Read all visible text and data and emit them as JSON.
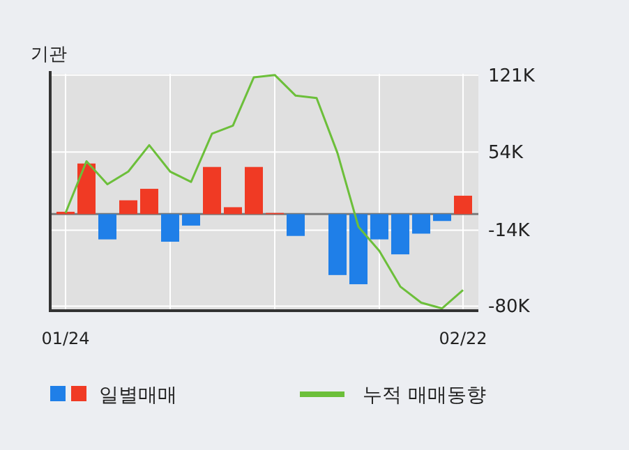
{
  "chart_data": {
    "type": "bar",
    "title": "기관",
    "categories": [
      "01/24",
      null,
      null,
      null,
      null,
      null,
      null,
      null,
      null,
      null,
      null,
      null,
      null,
      null,
      null,
      null,
      null,
      null,
      null,
      "02/22"
    ],
    "series": [
      {
        "name": "일별매매",
        "colors": [
          "#f03a24",
          "#f03a24",
          "#1f7fe8",
          "#f03a24",
          "#f03a24",
          "#1f7fe8",
          "#1f7fe8",
          "#f03a24",
          "#f03a24",
          "#f03a24",
          "#f03a24",
          "#1f7fe8",
          "#1f7fe8",
          "#1f7fe8",
          "#1f7fe8",
          "#1f7fe8",
          "#1f7fe8",
          "#1f7fe8",
          "#1f7fe8",
          "#f03a24"
        ],
        "values": [
          2,
          44,
          -22,
          12,
          22,
          -24,
          -10,
          41,
          6,
          41,
          1,
          -19,
          0,
          -53,
          -61,
          -22,
          -35,
          -17,
          -6,
          16
        ]
      },
      {
        "name": "누적 매매동향",
        "type": "line",
        "color": "#6cbf3a",
        "values": [
          1,
          46,
          26,
          37,
          60,
          37,
          28,
          70,
          77,
          119,
          121,
          103,
          101,
          53,
          -11,
          -32,
          -63,
          -77,
          -82,
          -66
        ]
      }
    ],
    "ylim": [
      -84,
      122
    ],
    "yticks": [
      {
        "value": 121,
        "label": "121K"
      },
      {
        "value": 54,
        "label": "54K"
      },
      {
        "value": -14,
        "label": "-14K"
      },
      {
        "value": -80,
        "label": "-80K"
      }
    ],
    "grid": true,
    "legend": "bottom"
  }
}
